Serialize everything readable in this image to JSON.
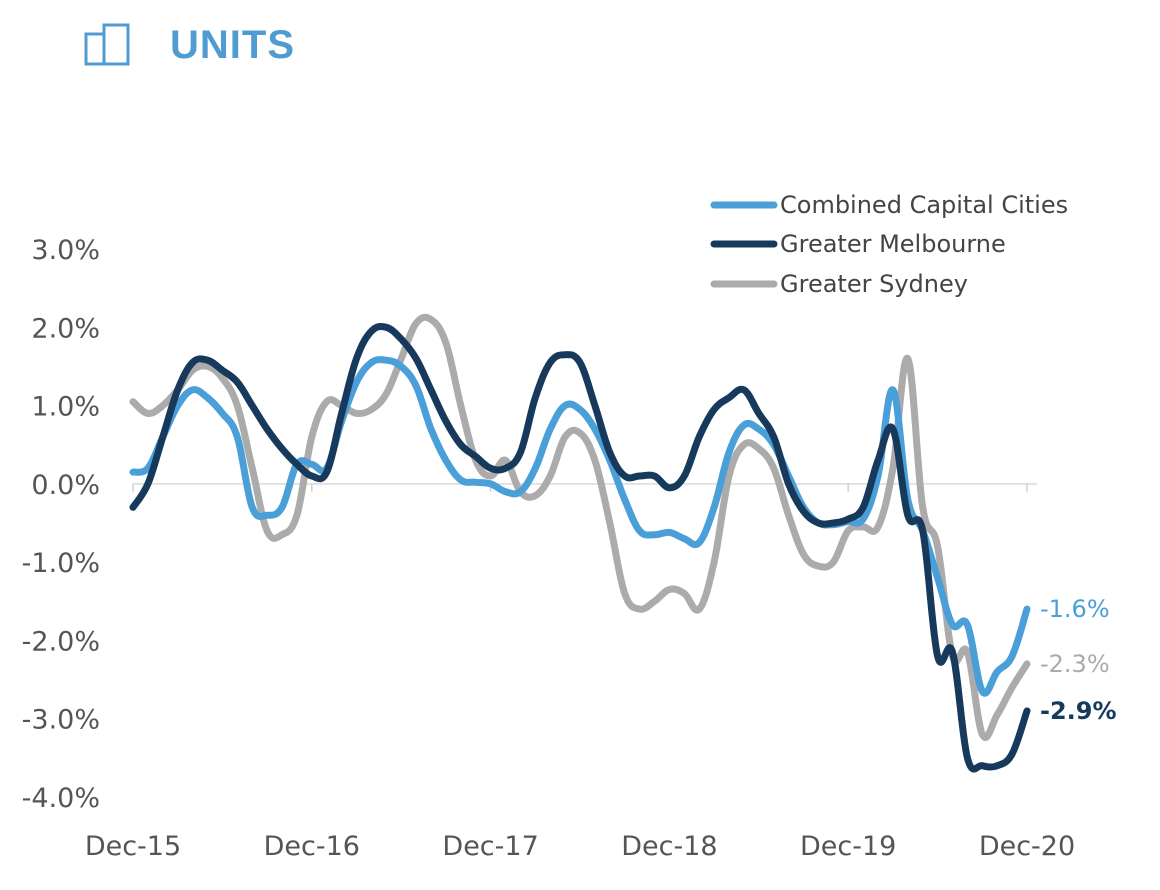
{
  "header": {
    "title": "UNITS",
    "icon": "units-building-icon",
    "accent": "#4f9bd2"
  },
  "chart_data": {
    "type": "line",
    "title": "",
    "xlabel": "",
    "ylabel": "",
    "ylim": [
      -4.0,
      3.0
    ],
    "yticks": [
      3.0,
      2.0,
      1.0,
      0.0,
      -1.0,
      -2.0,
      -3.0,
      -4.0
    ],
    "ytick_labels": [
      "3.0%",
      "2.0%",
      "1.0%",
      "0.0%",
      "-1.0%",
      "-2.0%",
      "-3.0%",
      "-4.0%"
    ],
    "xlim": [
      0,
      60
    ],
    "xticks": [
      0,
      12,
      24,
      36,
      48,
      60
    ],
    "xtick_labels": [
      "Dec-15",
      "Dec-16",
      "Dec-17",
      "Dec-18",
      "Dec-19",
      "Dec-20"
    ],
    "grid": false,
    "legend_position": "top-right",
    "series": [
      {
        "name": "Combined Capital Cities",
        "color": "#4a9fd8",
        "end_label": "-1.6%",
        "points": [
          [
            0,
            0.15
          ],
          [
            1,
            0.2
          ],
          [
            2,
            0.6
          ],
          [
            3,
            1.0
          ],
          [
            4,
            1.2
          ],
          [
            5,
            1.1
          ],
          [
            6,
            0.9
          ],
          [
            7,
            0.6
          ],
          [
            8,
            -0.3
          ],
          [
            9,
            -0.4
          ],
          [
            10,
            -0.3
          ],
          [
            11,
            0.25
          ],
          [
            12,
            0.25
          ],
          [
            13,
            0.2
          ],
          [
            14,
            0.8
          ],
          [
            15,
            1.3
          ],
          [
            16,
            1.55
          ],
          [
            17,
            1.58
          ],
          [
            18,
            1.5
          ],
          [
            19,
            1.25
          ],
          [
            20,
            0.7
          ],
          [
            21,
            0.3
          ],
          [
            22,
            0.05
          ],
          [
            23,
            0.02
          ],
          [
            24,
            0.0
          ],
          [
            25,
            -0.1
          ],
          [
            26,
            -0.1
          ],
          [
            27,
            0.2
          ],
          [
            28,
            0.7
          ],
          [
            29,
            1.0
          ],
          [
            30,
            0.95
          ],
          [
            31,
            0.7
          ],
          [
            32,
            0.3
          ],
          [
            33,
            -0.2
          ],
          [
            34,
            -0.6
          ],
          [
            35,
            -0.65
          ],
          [
            36,
            -0.62
          ],
          [
            37,
            -0.7
          ],
          [
            38,
            -0.75
          ],
          [
            39,
            -0.3
          ],
          [
            40,
            0.4
          ],
          [
            41,
            0.75
          ],
          [
            42,
            0.7
          ],
          [
            43,
            0.5
          ],
          [
            44,
            0.1
          ],
          [
            45,
            -0.3
          ],
          [
            46,
            -0.5
          ],
          [
            47,
            -0.52
          ],
          [
            48,
            -0.48
          ],
          [
            49,
            -0.45
          ],
          [
            50,
            0.1
          ],
          [
            51,
            1.2
          ],
          [
            52,
            -0.2
          ],
          [
            53,
            -0.6
          ],
          [
            54,
            -1.2
          ],
          [
            55,
            -1.8
          ],
          [
            56,
            -1.8
          ],
          [
            57,
            -2.65
          ],
          [
            58,
            -2.4
          ],
          [
            59,
            -2.2
          ],
          [
            60,
            -1.6
          ]
        ]
      },
      {
        "name": "Greater Melbourne",
        "color": "#173a5c",
        "end_label": "-2.9%",
        "points": [
          [
            0,
            -0.3
          ],
          [
            1,
            0.0
          ],
          [
            2,
            0.6
          ],
          [
            3,
            1.2
          ],
          [
            4,
            1.55
          ],
          [
            5,
            1.58
          ],
          [
            6,
            1.45
          ],
          [
            7,
            1.3
          ],
          [
            8,
            1.0
          ],
          [
            9,
            0.7
          ],
          [
            10,
            0.45
          ],
          [
            11,
            0.25
          ],
          [
            12,
            0.1
          ],
          [
            13,
            0.15
          ],
          [
            14,
            0.9
          ],
          [
            15,
            1.6
          ],
          [
            16,
            1.95
          ],
          [
            17,
            2.0
          ],
          [
            18,
            1.85
          ],
          [
            19,
            1.6
          ],
          [
            20,
            1.2
          ],
          [
            21,
            0.8
          ],
          [
            22,
            0.5
          ],
          [
            23,
            0.35
          ],
          [
            24,
            0.2
          ],
          [
            25,
            0.2
          ],
          [
            26,
            0.4
          ],
          [
            27,
            1.1
          ],
          [
            28,
            1.55
          ],
          [
            29,
            1.65
          ],
          [
            30,
            1.55
          ],
          [
            31,
            1.0
          ],
          [
            32,
            0.4
          ],
          [
            33,
            0.1
          ],
          [
            34,
            0.1
          ],
          [
            35,
            0.1
          ],
          [
            36,
            -0.05
          ],
          [
            37,
            0.1
          ],
          [
            38,
            0.6
          ],
          [
            39,
            0.95
          ],
          [
            40,
            1.1
          ],
          [
            41,
            1.2
          ],
          [
            42,
            0.9
          ],
          [
            43,
            0.6
          ],
          [
            44,
            0.0
          ],
          [
            45,
            -0.35
          ],
          [
            46,
            -0.5
          ],
          [
            47,
            -0.5
          ],
          [
            48,
            -0.45
          ],
          [
            49,
            -0.3
          ],
          [
            50,
            0.3
          ],
          [
            51,
            0.7
          ],
          [
            52,
            -0.4
          ],
          [
            53,
            -0.6
          ],
          [
            54,
            -2.2
          ],
          [
            55,
            -2.15
          ],
          [
            56,
            -3.5
          ],
          [
            57,
            -3.6
          ],
          [
            58,
            -3.6
          ],
          [
            59,
            -3.45
          ],
          [
            60,
            -2.9
          ]
        ]
      },
      {
        "name": "Greater Sydney",
        "color": "#ababab",
        "end_label": "-2.3%",
        "points": [
          [
            0,
            1.05
          ],
          [
            1,
            0.9
          ],
          [
            2,
            1.0
          ],
          [
            3,
            1.2
          ],
          [
            4,
            1.45
          ],
          [
            5,
            1.5
          ],
          [
            6,
            1.35
          ],
          [
            7,
            1.0
          ],
          [
            8,
            0.2
          ],
          [
            9,
            -0.6
          ],
          [
            10,
            -0.65
          ],
          [
            11,
            -0.4
          ],
          [
            12,
            0.6
          ],
          [
            13,
            1.05
          ],
          [
            14,
            1.0
          ],
          [
            15,
            0.9
          ],
          [
            16,
            0.95
          ],
          [
            17,
            1.15
          ],
          [
            18,
            1.6
          ],
          [
            19,
            2.05
          ],
          [
            20,
            2.1
          ],
          [
            21,
            1.8
          ],
          [
            22,
            1.0
          ],
          [
            23,
            0.3
          ],
          [
            24,
            0.1
          ],
          [
            25,
            0.3
          ],
          [
            26,
            -0.1
          ],
          [
            27,
            -0.15
          ],
          [
            28,
            0.1
          ],
          [
            29,
            0.6
          ],
          [
            30,
            0.65
          ],
          [
            31,
            0.3
          ],
          [
            32,
            -0.5
          ],
          [
            33,
            -1.4
          ],
          [
            34,
            -1.6
          ],
          [
            35,
            -1.5
          ],
          [
            36,
            -1.35
          ],
          [
            37,
            -1.4
          ],
          [
            38,
            -1.6
          ],
          [
            39,
            -1.0
          ],
          [
            40,
            0.1
          ],
          [
            41,
            0.5
          ],
          [
            42,
            0.45
          ],
          [
            43,
            0.2
          ],
          [
            44,
            -0.4
          ],
          [
            45,
            -0.9
          ],
          [
            46,
            -1.05
          ],
          [
            47,
            -1.0
          ],
          [
            48,
            -0.6
          ],
          [
            49,
            -0.55
          ],
          [
            50,
            -0.55
          ],
          [
            51,
            0.2
          ],
          [
            52,
            1.6
          ],
          [
            53,
            -0.3
          ],
          [
            54,
            -0.8
          ],
          [
            55,
            -2.2
          ],
          [
            56,
            -2.15
          ],
          [
            57,
            -3.2
          ],
          [
            58,
            -2.95
          ],
          [
            59,
            -2.6
          ],
          [
            60,
            -2.3
          ]
        ]
      }
    ]
  }
}
